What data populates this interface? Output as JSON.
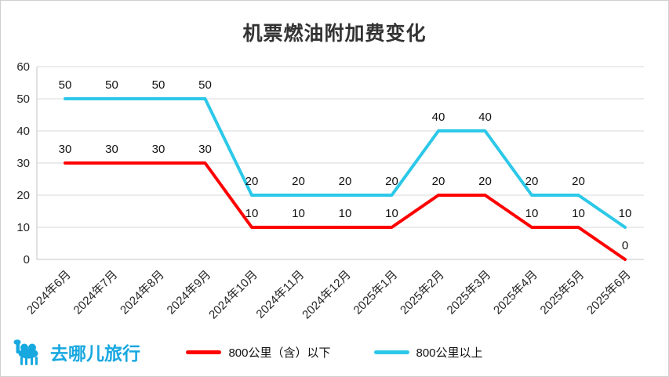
{
  "chart_data": {
    "type": "line",
    "title": "机票燃油附加费变化",
    "categories": [
      "2024年6月",
      "2024年7月",
      "2024年8月",
      "2024年9月",
      "2024年10月",
      "2024年11月",
      "2024年12月",
      "2025年1月",
      "2025年2月",
      "2025年3月",
      "2025年4月",
      "2025年5月",
      "2025年6月"
    ],
    "series": [
      {
        "name": "800公里（含）以下",
        "color": "#fe0000",
        "values": [
          30,
          30,
          30,
          30,
          10,
          10,
          10,
          10,
          20,
          20,
          10,
          10,
          0
        ]
      },
      {
        "name": "800公里以上",
        "color": "#2cc8e8",
        "values": [
          50,
          50,
          50,
          50,
          20,
          20,
          20,
          20,
          40,
          40,
          20,
          20,
          10
        ]
      }
    ],
    "ylim": [
      0,
      60
    ],
    "ytick_step": 10,
    "ytick_labels": [
      "0",
      "10",
      "20",
      "30",
      "40",
      "50",
      "60"
    ],
    "grid": true,
    "legend_position": "bottom",
    "data_labels": true
  },
  "branding": {
    "logo_text": "去哪儿旅行",
    "logo_color": "#18a8e0"
  },
  "colors": {
    "grid": "#d9d9d9",
    "axis_line": "#c4c4c4",
    "axis_text": "#262626",
    "data_label_text": "#111111"
  }
}
